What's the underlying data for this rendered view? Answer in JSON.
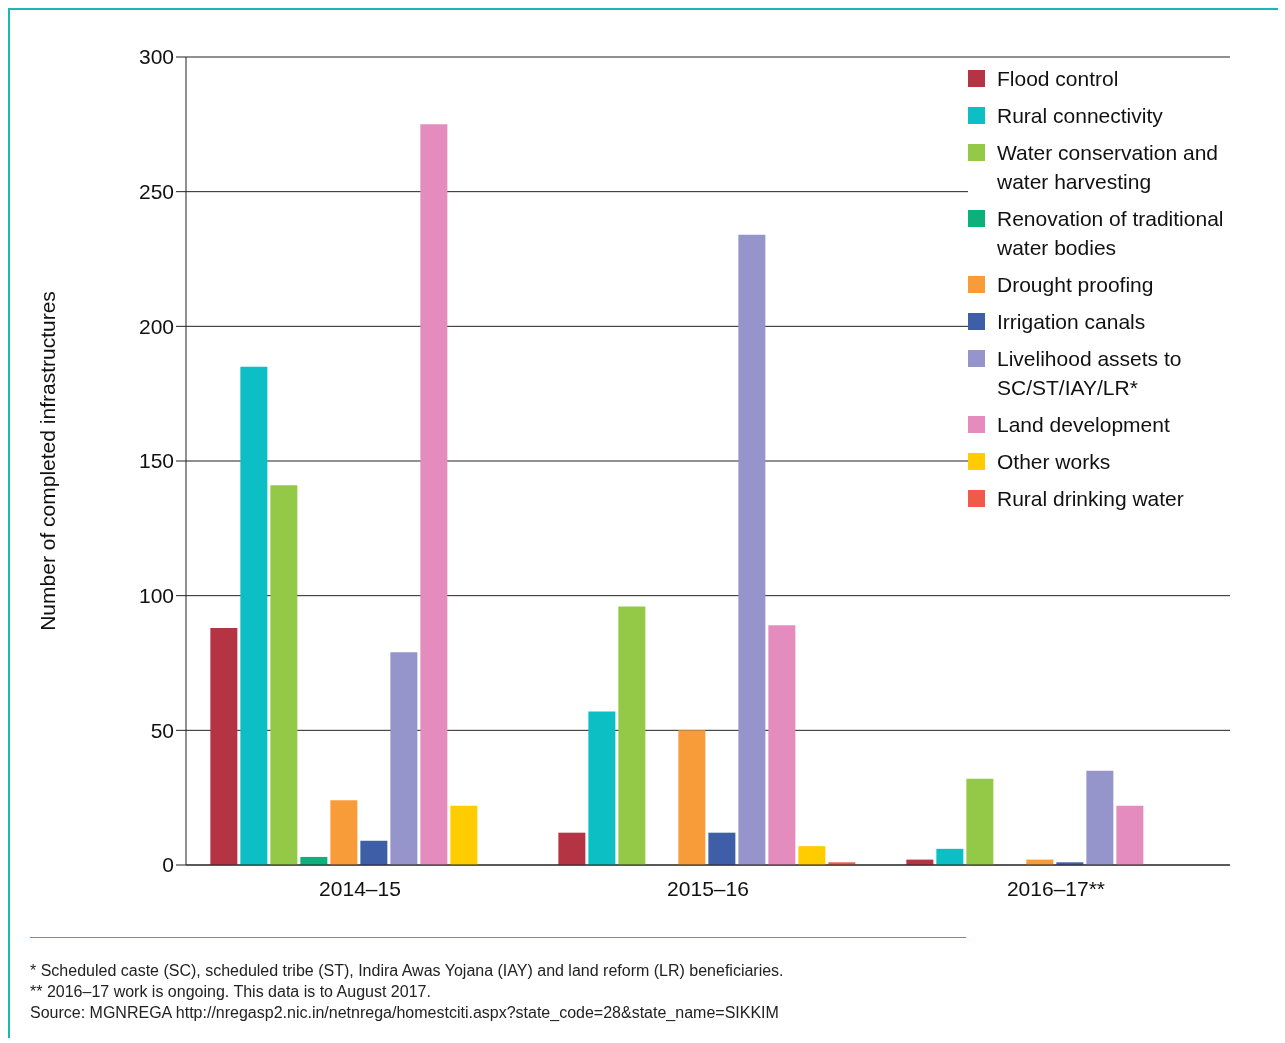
{
  "chart_data": {
    "type": "bar",
    "ylabel": "Number of completed infrastructures",
    "categories": [
      "2014–15",
      "2015–16",
      "2016–17**"
    ],
    "series": [
      {
        "name": "Flood control",
        "color": "#b53444",
        "values": [
          88,
          12,
          2
        ]
      },
      {
        "name": "Rural connectivity",
        "color": "#0bbfc4",
        "values": [
          185,
          57,
          6
        ]
      },
      {
        "name": "Water conservation and water harvesting",
        "color": "#93c947",
        "values": [
          141,
          96,
          32
        ]
      },
      {
        "name": "Renovation of traditional water bodies",
        "color": "#0db07a",
        "values": [
          3,
          0,
          0
        ]
      },
      {
        "name": "Drought proofing",
        "color": "#f89c3a",
        "values": [
          24,
          50,
          2
        ]
      },
      {
        "name": "Irrigation canals",
        "color": "#3f5ea8",
        "values": [
          9,
          12,
          1
        ]
      },
      {
        "name": "Livelihood assets to SC/ST/IAY/LR*",
        "color": "#9595cb",
        "values": [
          79,
          234,
          35
        ]
      },
      {
        "name": "Land development",
        "color": "#e38cbd",
        "values": [
          275,
          89,
          22
        ]
      },
      {
        "name": "Other works",
        "color": "#ffcc00",
        "values": [
          22,
          7,
          0
        ]
      },
      {
        "name": "Rural drinking water",
        "color": "#ee5c47",
        "values": [
          0,
          1,
          0
        ]
      }
    ],
    "ylim": [
      0,
      300
    ],
    "yticks": [
      0,
      50,
      100,
      150,
      200,
      250,
      300
    ],
    "grid": "y",
    "legend": "top right",
    "annotations": [
      "* Scheduled caste (SC), scheduled tribe (ST), Indira Awas Yojana (IAY) and land reform (LR) beneficiaries.",
      "** 2016–17 work is ongoing. This data is to August 2017.",
      "Source: MGNREGA http://nregasp2.nic.in/netnrega/homestciti.aspx?state_code=28&state_name=SIKKIM"
    ]
  }
}
